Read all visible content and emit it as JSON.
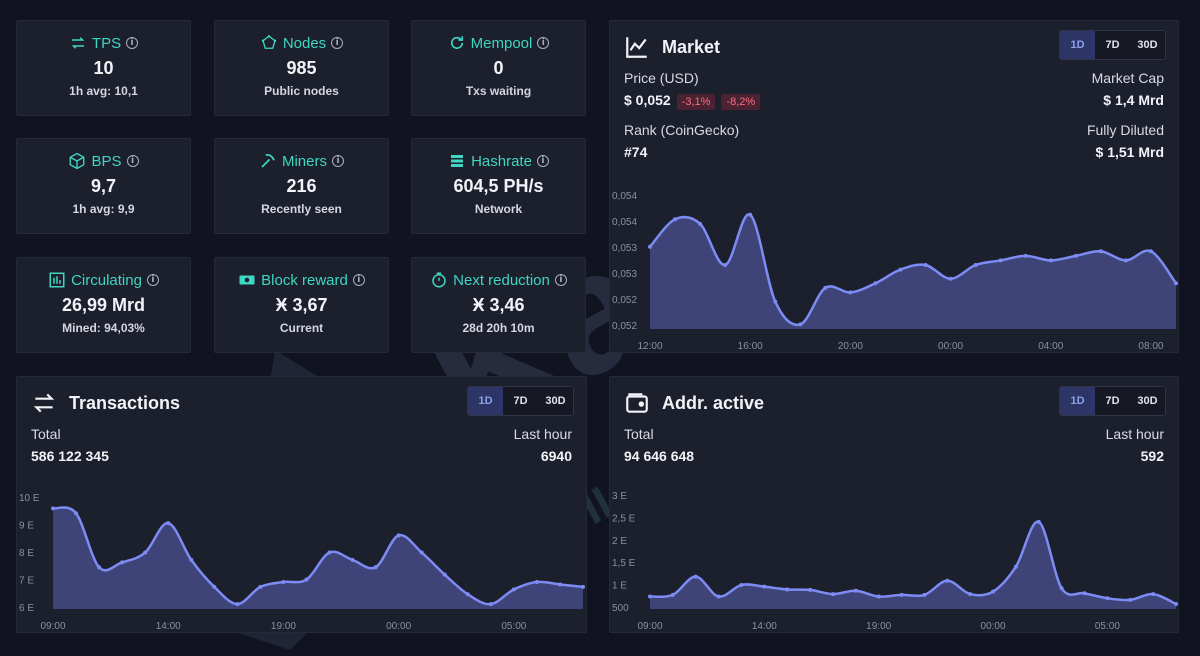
{
  "stats": [
    {
      "title": "TPS",
      "icon": "transfer-icon",
      "value": "10",
      "sub": "1h avg: 10,1"
    },
    {
      "title": "Nodes",
      "icon": "network-icon",
      "value": "985",
      "sub": "Public nodes"
    },
    {
      "title": "Mempool",
      "icon": "refresh-icon",
      "value": "0",
      "sub": "Txs waiting"
    },
    {
      "title": "BPS",
      "icon": "cube-icon",
      "value": "9,7",
      "sub": "1h avg: 9,9"
    },
    {
      "title": "Miners",
      "icon": "pickaxe-icon",
      "value": "216",
      "sub": "Recently seen"
    },
    {
      "title": "Hashrate",
      "icon": "server-icon",
      "value": "604,5 PH/s",
      "sub": "Network"
    },
    {
      "title": "Circulating",
      "icon": "supply-icon",
      "value": "26,99 Mrd",
      "sub": "Mined: 94,03%"
    },
    {
      "title": "Block reward",
      "icon": "money-icon",
      "value": "Ӿ 3,67",
      "sub": "Current"
    },
    {
      "title": "Next reduction",
      "icon": "stopwatch-icon",
      "value": "Ӿ 3,46",
      "sub": "28d 20h 10m"
    }
  ],
  "ranges": [
    "1D",
    "7D",
    "30D"
  ],
  "market": {
    "title": "Market",
    "price_label": "Price (USD)",
    "price": "$ 0,052",
    "change_a": "-3,1%",
    "change_b": "-8,2%",
    "mcap_label": "Market Cap",
    "mcap": "$ 1,4 Mrd",
    "rank_label": "Rank (CoinGecko)",
    "rank": "#74",
    "fdv_label": "Fully Diluted",
    "fdv": "$ 1,51 Mrd"
  },
  "transactions": {
    "title": "Transactions",
    "total_label": "Total",
    "total": "586 122 345",
    "last_label": "Last hour",
    "last": "6940"
  },
  "addresses": {
    "title": "Addr. active",
    "total_label": "Total",
    "total": "94 646 648",
    "last_label": "Last hour",
    "last": "592"
  },
  "colors": {
    "accent": "#3fd6c3",
    "line": "#7d8cf5",
    "fill": "#4a5290",
    "card": "#1c1f2c",
    "bg": "#111420"
  },
  "chart_data": [
    {
      "type": "area",
      "title": "Market price",
      "x": [
        "12:00",
        "13:00",
        "14:00",
        "15:00",
        "16:00",
        "17:00",
        "18:00",
        "19:00",
        "20:00",
        "21:00",
        "22:00",
        "23:00",
        "00:00",
        "01:00",
        "02:00",
        "03:00",
        "04:00",
        "05:00",
        "06:00",
        "07:00",
        "08:00",
        "09:00"
      ],
      "xticks": [
        "12:00",
        "16:00",
        "20:00",
        "00:00",
        "04:00",
        "08:00"
      ],
      "yticks": [
        "0,054",
        "0,054",
        "0,053",
        "0,053",
        "0,052",
        "0,052"
      ],
      "values": [
        0.0535,
        0.0541,
        0.054,
        0.0531,
        0.0542,
        0.0523,
        0.0518,
        0.0526,
        0.0525,
        0.0527,
        0.053,
        0.0531,
        0.0528,
        0.0531,
        0.0532,
        0.0533,
        0.0532,
        0.0533,
        0.0534,
        0.0532,
        0.0534,
        0.0527
      ],
      "ylim": [
        0.0517,
        0.0545
      ]
    },
    {
      "type": "area",
      "title": "Transactions",
      "x": [
        "09:00",
        "10:00",
        "11:00",
        "12:00",
        "13:00",
        "14:00",
        "15:00",
        "16:00",
        "17:00",
        "18:00",
        "19:00",
        "20:00",
        "21:00",
        "22:00",
        "23:00",
        "00:00",
        "01:00",
        "02:00",
        "03:00",
        "04:00",
        "05:00",
        "06:00",
        "07:00",
        "08:00"
      ],
      "xticks": [
        "09:00",
        "14:00",
        "19:00",
        "00:00",
        "05:00"
      ],
      "yticks": [
        "10 E",
        "9 E",
        "8 E",
        "7 E",
        "6 E"
      ],
      "values": [
        10.0,
        9.8,
        7.6,
        7.8,
        8.2,
        9.4,
        7.9,
        6.8,
        6.1,
        6.8,
        7.0,
        7.1,
        8.2,
        7.9,
        7.6,
        8.9,
        8.2,
        7.3,
        6.5,
        6.1,
        6.7,
        7.0,
        6.9,
        6.8
      ],
      "ylim": [
        5.9,
        10.3
      ]
    },
    {
      "type": "area",
      "title": "Addr. active",
      "x": [
        "09:00",
        "10:00",
        "11:00",
        "12:00",
        "13:00",
        "14:00",
        "15:00",
        "16:00",
        "17:00",
        "18:00",
        "19:00",
        "20:00",
        "21:00",
        "22:00",
        "23:00",
        "00:00",
        "01:00",
        "02:00",
        "03:00",
        "04:00",
        "05:00",
        "06:00",
        "07:00",
        "08:00"
      ],
      "xticks": [
        "09:00",
        "14:00",
        "19:00",
        "00:00",
        "05:00"
      ],
      "yticks": [
        "3 E",
        "2,5 E",
        "2 E",
        "1,5 E",
        "1 E",
        "500"
      ],
      "values": [
        700,
        740,
        1180,
        700,
        980,
        940,
        870,
        860,
        760,
        840,
        700,
        740,
        740,
        1080,
        760,
        820,
        1420,
        2500,
        900,
        780,
        660,
        620,
        760,
        520
      ],
      "ylim": [
        400,
        3100
      ]
    }
  ],
  "watermark": {
    "text": "Kaspa",
    "sub": "BUILDERS"
  }
}
